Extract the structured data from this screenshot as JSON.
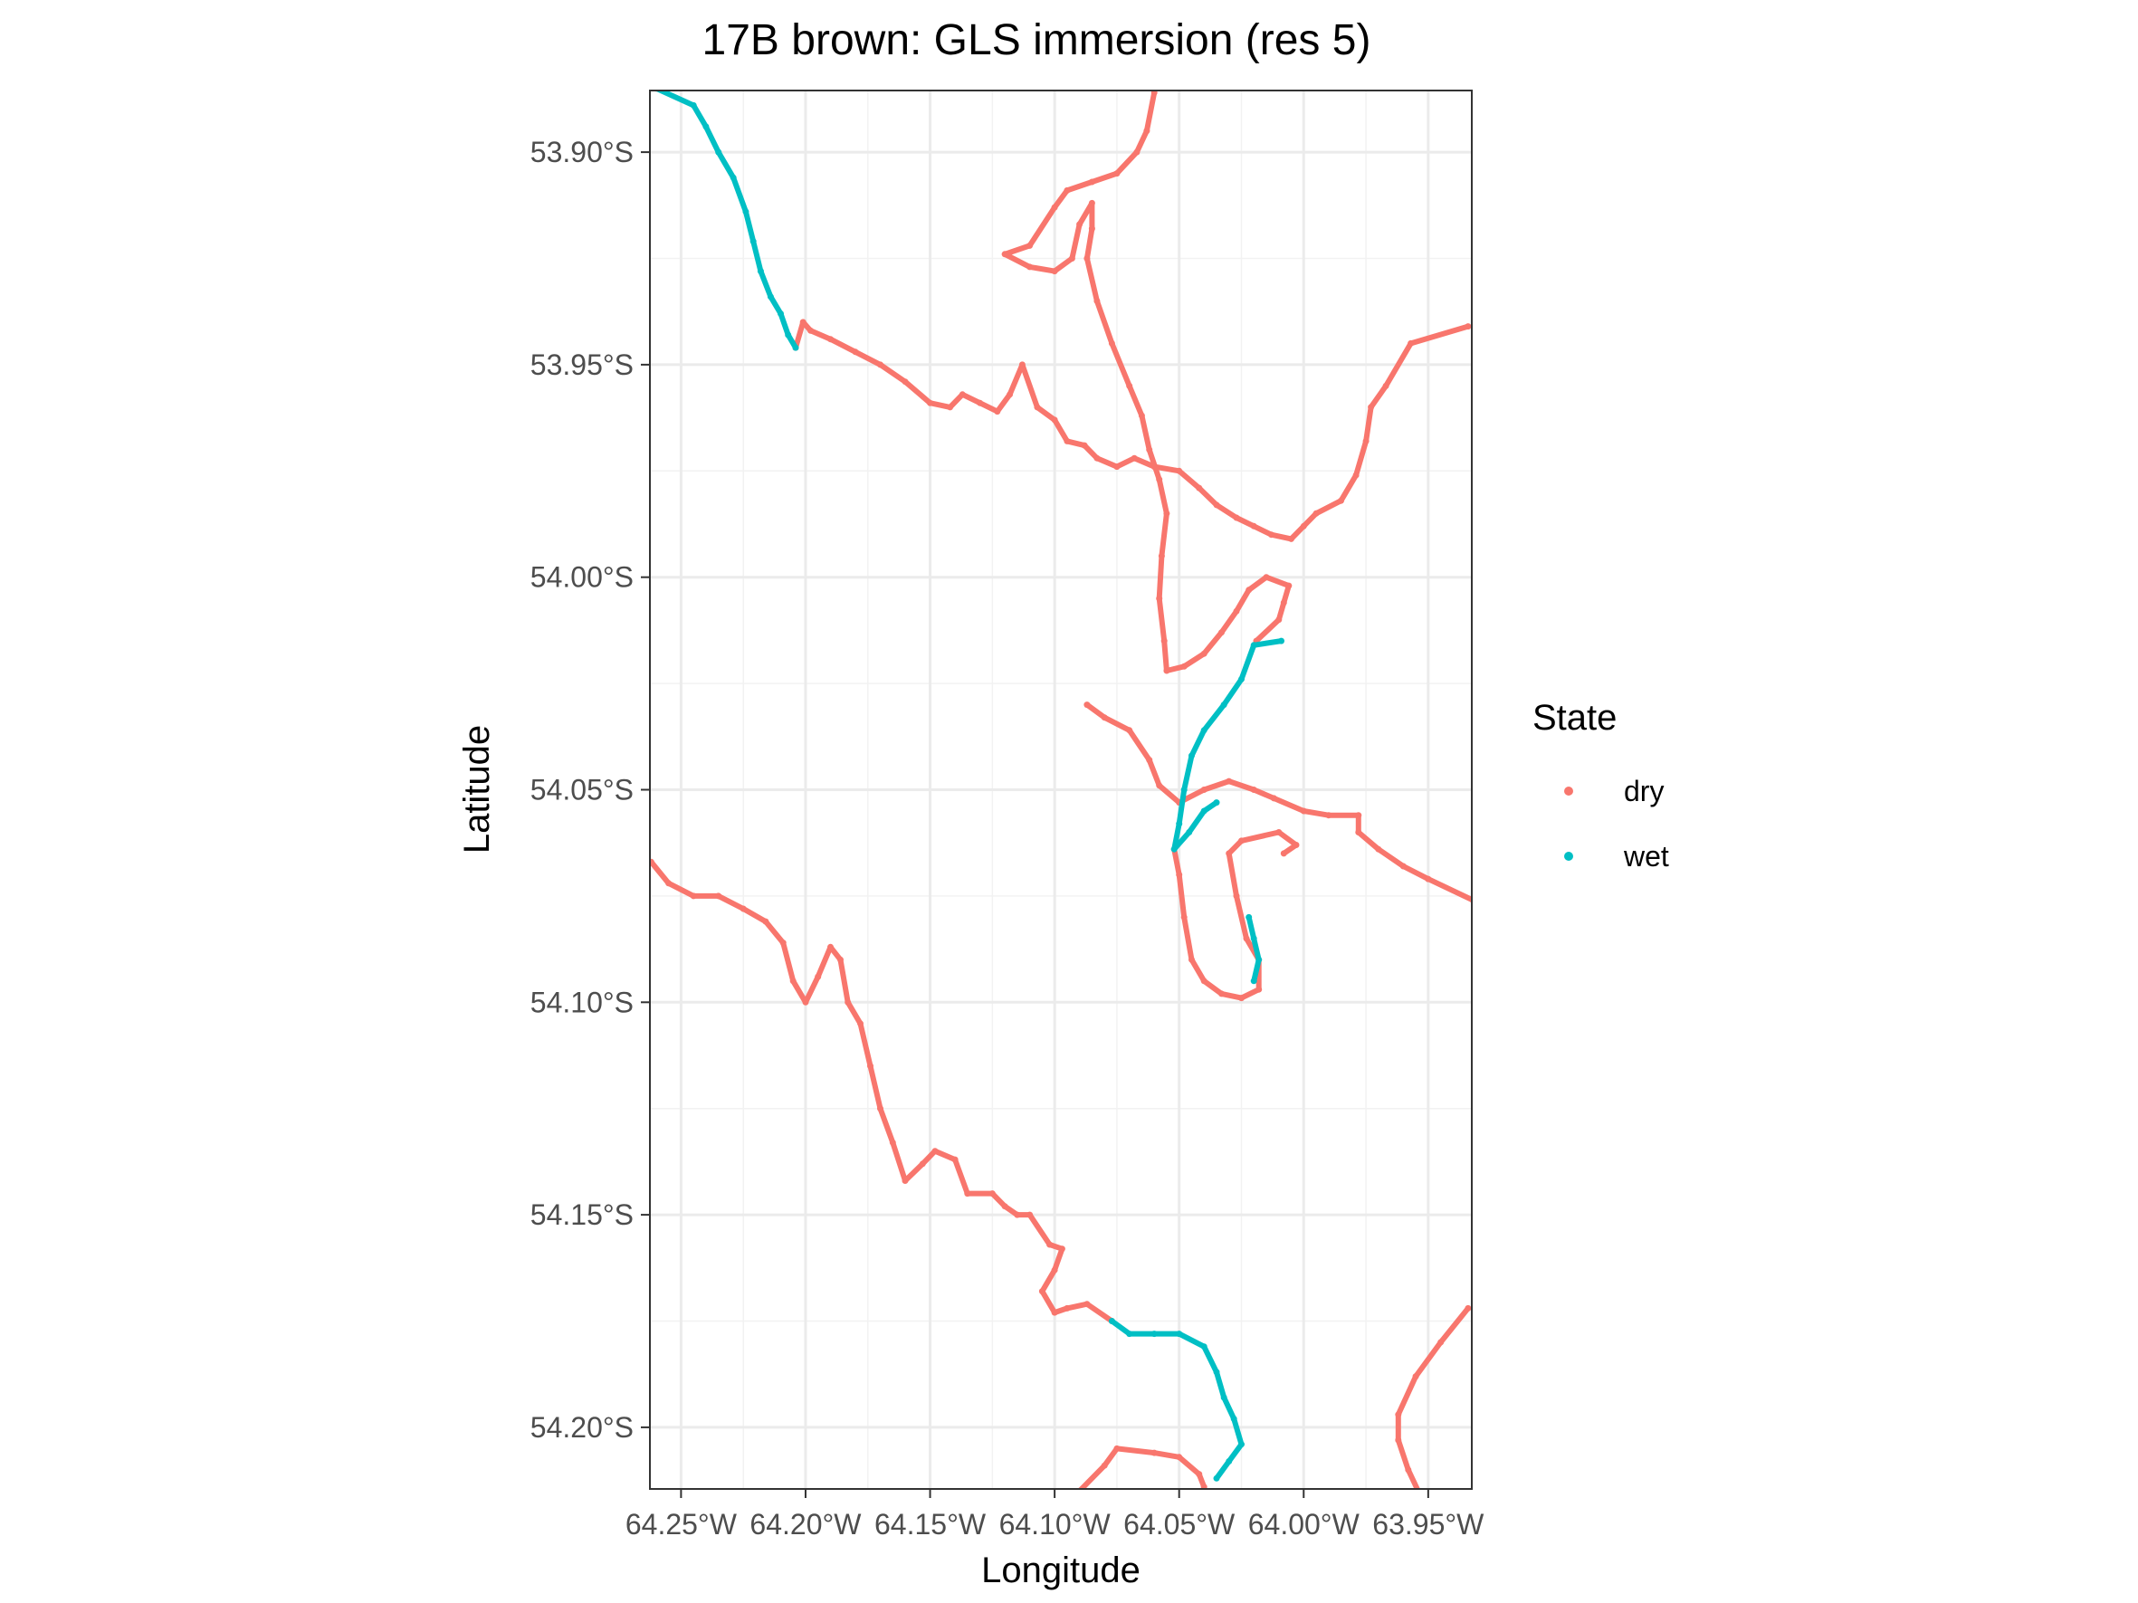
{
  "chart_data": {
    "type": "scatter",
    "title": "17B brown: GLS immersion (res 5)",
    "xlabel": "Longitude",
    "ylabel": "Latitude",
    "xlim": [
      -64.2625,
      -63.9325
    ],
    "ylim": [
      -54.2145,
      -53.8855
    ],
    "x_ticks": [
      -64.25,
      -64.2,
      -64.15,
      -64.1,
      -64.05,
      -64.0,
      -63.95
    ],
    "x_tick_labels": [
      "64.25°W",
      "64.20°W",
      "64.15°W",
      "64.10°W",
      "64.05°W",
      "64.00°W",
      "63.95°W"
    ],
    "y_ticks": [
      -53.9,
      -53.95,
      -54.0,
      -54.05,
      -54.1,
      -54.15,
      -54.2
    ],
    "y_tick_labels": [
      "53.90°S",
      "53.95°S",
      "54.00°S",
      "54.05°S",
      "54.10°S",
      "54.15°S",
      "54.20°S"
    ],
    "grid": true,
    "legend": {
      "title": "State",
      "position": "right",
      "entries": [
        {
          "label": "dry",
          "color": "#F8766D"
        },
        {
          "label": "wet",
          "color": "#00BFC4"
        }
      ]
    },
    "colors": {
      "dry": "#F8766D",
      "wet": "#00BFC4"
    },
    "series": [
      {
        "name": "wet",
        "state": "wet",
        "points": [
          [
            -64.26,
            -53.885
          ],
          [
            -64.245,
            -53.889
          ],
          [
            -64.24,
            -53.894
          ],
          [
            -64.235,
            -53.9
          ],
          [
            -64.229,
            -53.906
          ],
          [
            -64.224,
            -53.914
          ],
          [
            -64.221,
            -53.921
          ],
          [
            -64.218,
            -53.928
          ],
          [
            -64.214,
            -53.934
          ],
          [
            -64.21,
            -53.938
          ],
          [
            -64.207,
            -53.943
          ],
          [
            -64.204,
            -53.946
          ]
        ]
      },
      {
        "name": "dry",
        "state": "dry",
        "points": [
          [
            -64.204,
            -53.946
          ],
          [
            -64.201,
            -53.94
          ],
          [
            -64.198,
            -53.942
          ],
          [
            -64.19,
            -53.944
          ],
          [
            -64.18,
            -53.947
          ],
          [
            -64.17,
            -53.95
          ],
          [
            -64.16,
            -53.954
          ],
          [
            -64.15,
            -53.959
          ],
          [
            -64.142,
            -53.96
          ],
          [
            -64.137,
            -53.957
          ],
          [
            -64.13,
            -53.959
          ],
          [
            -64.123,
            -53.961
          ],
          [
            -64.118,
            -53.957
          ],
          [
            -64.113,
            -53.95
          ],
          [
            -64.107,
            -53.96
          ],
          [
            -64.1,
            -53.963
          ],
          [
            -64.095,
            -53.968
          ],
          [
            -64.088,
            -53.969
          ],
          [
            -64.083,
            -53.972
          ],
          [
            -64.075,
            -53.974
          ],
          [
            -64.068,
            -53.972
          ],
          [
            -64.06,
            -53.974
          ],
          [
            -64.05,
            -53.975
          ],
          [
            -64.042,
            -53.979
          ],
          [
            -64.035,
            -53.983
          ],
          [
            -64.027,
            -53.986
          ],
          [
            -64.02,
            -53.988
          ],
          [
            -64.013,
            -53.99
          ],
          [
            -64.005,
            -53.991
          ],
          [
            -64.0,
            -53.988
          ],
          [
            -63.995,
            -53.985
          ],
          [
            -63.985,
            -53.982
          ],
          [
            -63.979,
            -53.976
          ],
          [
            -63.975,
            -53.968
          ],
          [
            -63.973,
            -53.96
          ],
          [
            -63.967,
            -53.955
          ],
          [
            -63.957,
            -53.945
          ],
          [
            -63.934,
            -53.941
          ]
        ]
      },
      {
        "name": "dry",
        "state": "dry",
        "points": [
          [
            -64.06,
            -53.886
          ],
          [
            -64.063,
            -53.895
          ],
          [
            -64.067,
            -53.9
          ],
          [
            -64.075,
            -53.905
          ],
          [
            -64.085,
            -53.907
          ],
          [
            -64.095,
            -53.909
          ],
          [
            -64.1,
            -53.913
          ],
          [
            -64.11,
            -53.922
          ],
          [
            -64.12,
            -53.924
          ],
          [
            -64.11,
            -53.927
          ],
          [
            -64.1,
            -53.928
          ],
          [
            -64.093,
            -53.925
          ],
          [
            -64.09,
            -53.917
          ],
          [
            -64.085,
            -53.912
          ],
          [
            -64.085,
            -53.918
          ],
          [
            -64.087,
            -53.925
          ],
          [
            -64.083,
            -53.935
          ],
          [
            -64.077,
            -53.945
          ],
          [
            -64.07,
            -53.955
          ],
          [
            -64.065,
            -53.962
          ],
          [
            -64.062,
            -53.97
          ],
          [
            -64.058,
            -53.977
          ],
          [
            -64.055,
            -53.985
          ],
          [
            -64.057,
            -53.995
          ],
          [
            -64.058,
            -54.005
          ],
          [
            -64.056,
            -54.015
          ],
          [
            -64.055,
            -54.022
          ],
          [
            -64.048,
            -54.021
          ],
          [
            -64.04,
            -54.018
          ],
          [
            -64.033,
            -54.013
          ],
          [
            -64.027,
            -54.008
          ],
          [
            -64.022,
            -54.003
          ],
          [
            -64.015,
            -54.0
          ],
          [
            -64.006,
            -54.002
          ],
          [
            -64.008,
            -54.006
          ],
          [
            -64.01,
            -54.01
          ],
          [
            -64.019,
            -54.015
          ]
        ]
      },
      {
        "name": "wet",
        "state": "wet",
        "points": [
          [
            -64.009,
            -54.015
          ],
          [
            -64.02,
            -54.016
          ],
          [
            -64.025,
            -54.024
          ],
          [
            -64.032,
            -54.03
          ],
          [
            -64.04,
            -54.036
          ],
          [
            -64.045,
            -54.042
          ],
          [
            -64.048,
            -54.05
          ],
          [
            -64.05,
            -54.058
          ],
          [
            -64.052,
            -54.064
          ],
          [
            -64.046,
            -54.06
          ],
          [
            -64.04,
            -54.055
          ],
          [
            -64.035,
            -54.053
          ]
        ]
      },
      {
        "name": "dry",
        "state": "dry",
        "points": [
          [
            -64.087,
            -54.03
          ],
          [
            -64.08,
            -54.033
          ],
          [
            -64.07,
            -54.036
          ],
          [
            -64.062,
            -54.043
          ],
          [
            -64.058,
            -54.049
          ],
          [
            -64.05,
            -54.053
          ],
          [
            -64.04,
            -54.05
          ],
          [
            -64.03,
            -54.048
          ],
          [
            -64.02,
            -54.05
          ],
          [
            -64.012,
            -54.052
          ],
          [
            -64.0,
            -54.055
          ],
          [
            -63.99,
            -54.056
          ],
          [
            -63.978,
            -54.056
          ],
          [
            -63.978,
            -54.06
          ],
          [
            -63.97,
            -54.064
          ],
          [
            -63.96,
            -54.068
          ],
          [
            -63.95,
            -54.071
          ],
          [
            -63.932,
            -54.076
          ]
        ]
      },
      {
        "name": "dry",
        "state": "dry",
        "points": [
          [
            -64.052,
            -54.064
          ],
          [
            -64.05,
            -54.07
          ],
          [
            -64.048,
            -54.08
          ],
          [
            -64.045,
            -54.09
          ],
          [
            -64.04,
            -54.095
          ],
          [
            -64.033,
            -54.098
          ],
          [
            -64.025,
            -54.099
          ],
          [
            -64.018,
            -54.097
          ],
          [
            -64.018,
            -54.09
          ],
          [
            -64.023,
            -54.085
          ],
          [
            -64.027,
            -54.075
          ],
          [
            -64.03,
            -54.065
          ],
          [
            -64.025,
            -54.062
          ],
          [
            -64.01,
            -54.06
          ],
          [
            -64.003,
            -54.063
          ],
          [
            -64.008,
            -54.065
          ]
        ]
      },
      {
        "name": "wet",
        "state": "wet",
        "points": [
          [
            -64.022,
            -54.08
          ],
          [
            -64.02,
            -54.085
          ],
          [
            -64.018,
            -54.09
          ],
          [
            -64.02,
            -54.095
          ]
        ]
      },
      {
        "name": "dry",
        "state": "dry",
        "points": [
          [
            -64.262,
            -54.067
          ],
          [
            -64.255,
            -54.072
          ],
          [
            -64.245,
            -54.075
          ],
          [
            -64.235,
            -54.075
          ],
          [
            -64.225,
            -54.078
          ],
          [
            -64.216,
            -54.081
          ],
          [
            -64.209,
            -54.086
          ],
          [
            -64.205,
            -54.095
          ],
          [
            -64.2,
            -54.1
          ],
          [
            -64.195,
            -54.094
          ],
          [
            -64.19,
            -54.087
          ],
          [
            -64.186,
            -54.09
          ],
          [
            -64.183,
            -54.1
          ],
          [
            -64.178,
            -54.105
          ],
          [
            -64.174,
            -54.115
          ],
          [
            -64.17,
            -54.125
          ],
          [
            -64.165,
            -54.133
          ],
          [
            -64.16,
            -54.142
          ],
          [
            -64.153,
            -54.138
          ],
          [
            -64.148,
            -54.135
          ],
          [
            -64.14,
            -54.137
          ],
          [
            -64.135,
            -54.145
          ],
          [
            -64.125,
            -54.145
          ],
          [
            -64.12,
            -54.148
          ],
          [
            -64.115,
            -54.15
          ],
          [
            -64.11,
            -54.15
          ],
          [
            -64.102,
            -54.157
          ],
          [
            -64.097,
            -54.158
          ],
          [
            -64.1,
            -54.163
          ],
          [
            -64.105,
            -54.168
          ],
          [
            -64.1,
            -54.173
          ],
          [
            -64.095,
            -54.172
          ],
          [
            -64.087,
            -54.171
          ],
          [
            -64.077,
            -54.175
          ]
        ]
      },
      {
        "name": "wet",
        "state": "wet",
        "points": [
          [
            -64.077,
            -54.175
          ],
          [
            -64.07,
            -54.178
          ],
          [
            -64.06,
            -54.178
          ],
          [
            -64.05,
            -54.178
          ],
          [
            -64.04,
            -54.181
          ],
          [
            -64.035,
            -54.187
          ],
          [
            -64.032,
            -54.193
          ],
          [
            -64.028,
            -54.198
          ],
          [
            -64.025,
            -54.204
          ],
          [
            -64.03,
            -54.208
          ],
          [
            -64.035,
            -54.212
          ]
        ]
      },
      {
        "name": "dry",
        "state": "dry",
        "points": [
          [
            -64.09,
            -54.215
          ],
          [
            -64.08,
            -54.209
          ],
          [
            -64.075,
            -54.205
          ],
          [
            -64.06,
            -54.206
          ],
          [
            -64.05,
            -54.207
          ],
          [
            -64.042,
            -54.211
          ],
          [
            -64.04,
            -54.214
          ]
        ]
      },
      {
        "name": "dry",
        "state": "dry",
        "points": [
          [
            -63.954,
            -54.215
          ],
          [
            -63.958,
            -54.21
          ],
          [
            -63.962,
            -54.203
          ],
          [
            -63.962,
            -54.197
          ],
          [
            -63.955,
            -54.188
          ],
          [
            -63.945,
            -54.18
          ],
          [
            -63.934,
            -54.172
          ]
        ]
      }
    ]
  }
}
